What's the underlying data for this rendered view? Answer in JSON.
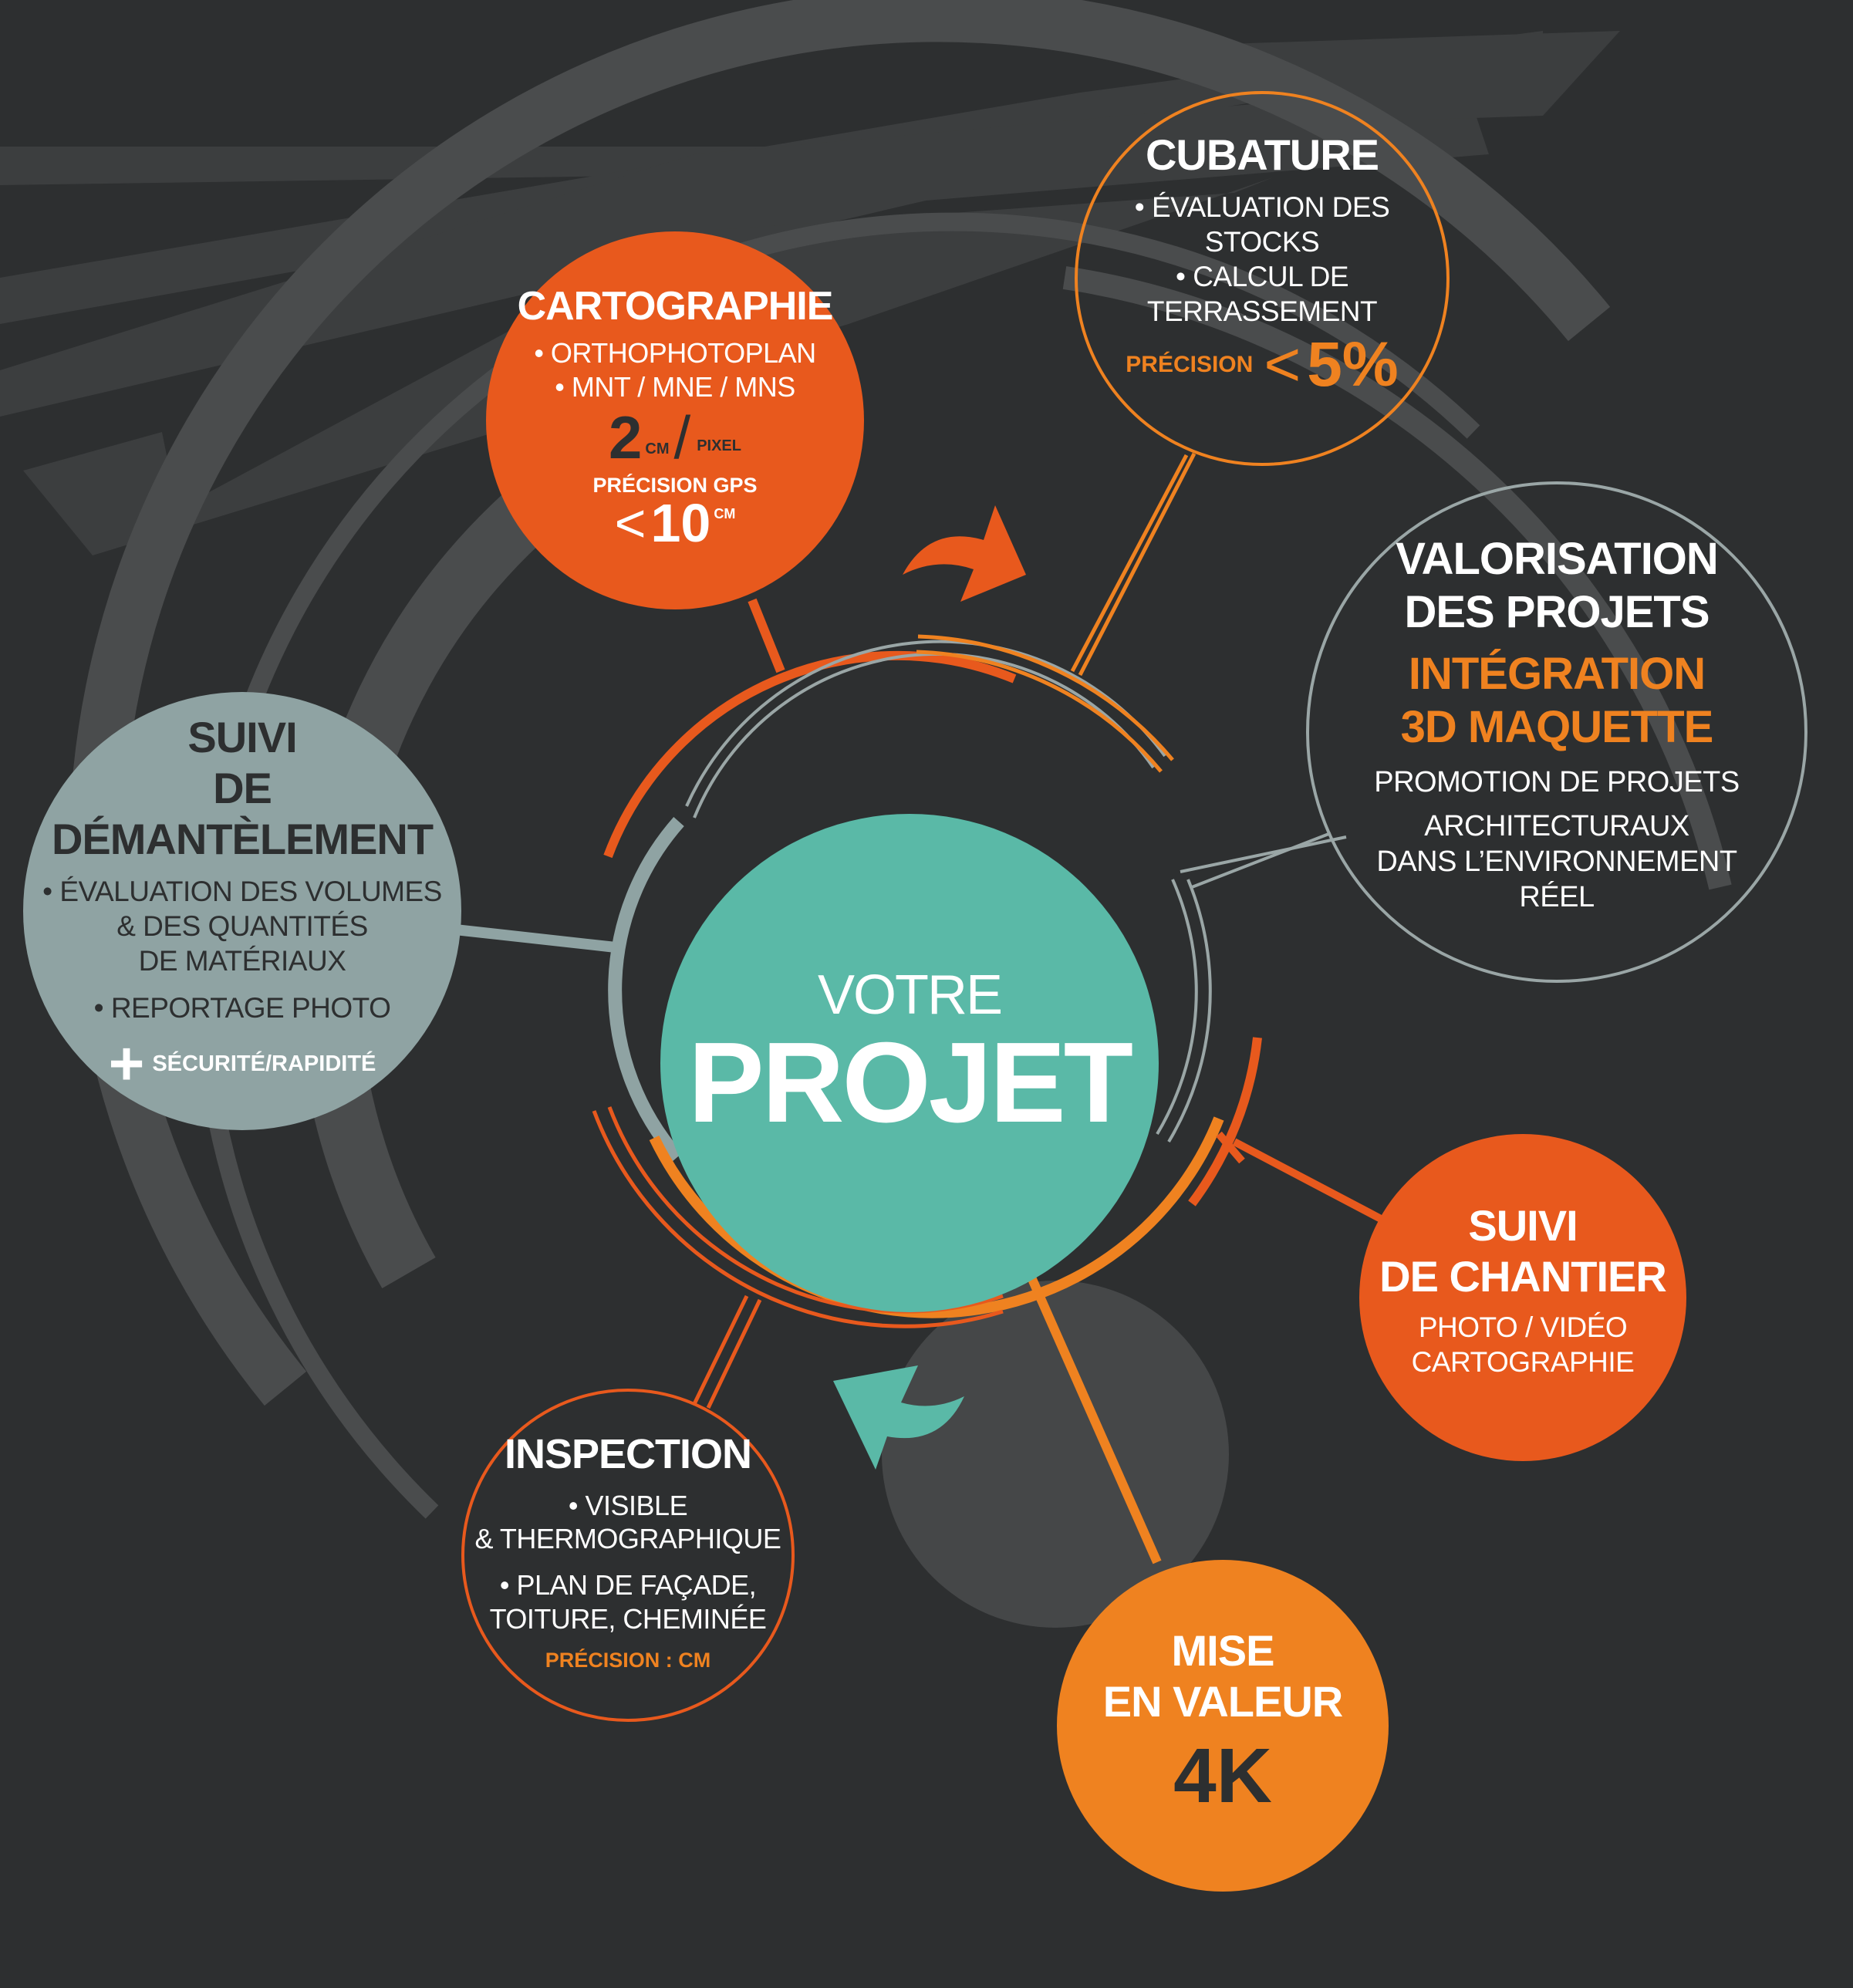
{
  "colors": {
    "background": "#2d2f30",
    "orange_dark": "#e8591d",
    "orange_light": "#ef8220",
    "teal": "#5ab9a7",
    "grey_blue": "#8fa3a3",
    "outline_light": "#9aa6a6",
    "white": "#ffffff",
    "dark_text": "#2d2f30"
  },
  "center": {
    "line1": "VOTRE",
    "line2": "PROJET"
  },
  "nodes": {
    "cartographie": {
      "title": "CARTOGRAPHIE",
      "bullet1": "• ORTHOPHOTOPLAN",
      "bullet2": "• MNT / MNE / MNS",
      "res_value": "2",
      "res_unit": "CM",
      "res_sep": "/",
      "res_per": "PIXEL",
      "gps_label": "PRÉCISION GPS",
      "gps_lt": "<",
      "gps_value": "10",
      "gps_unit": "CM"
    },
    "cubature": {
      "title": "CUBATURE",
      "bullet1": "• ÉVALUATION DES STOCKS",
      "bullet2": "• CALCUL DE TERRASSEMENT",
      "prec_label": "PRÉCISION",
      "prec_lt": "<",
      "prec_value": "5%"
    },
    "valorisation": {
      "title1": "VALORISATION",
      "title2": "DES PROJETS",
      "hl1": "INTÉGRATION",
      "hl2": "3D MAQUETTE",
      "line1": "PROMOTION DE PROJETS",
      "line2": "ARCHITECTURAUX",
      "line3": "DANS L’ENVIRONNEMENT",
      "line4": "RÉEL"
    },
    "demantelement": {
      "title1": "SUIVI",
      "title2": "DE DÉMANTÈLEMENT",
      "line1": "• ÉVALUATION DES VOLUMES",
      "line2": "& DES QUANTITÉS",
      "line3": "DE MATÉRIAUX",
      "line4": "• REPORTAGE PHOTO",
      "plus": "+",
      "extra": "SÉCURITÉ/RAPIDITÉ"
    },
    "chantier": {
      "title1": "SUIVI",
      "title2": "DE CHANTIER",
      "line1": "PHOTO / VIDÉO",
      "line2": "CARTOGRAPHIE"
    },
    "inspection": {
      "title": "INSPECTION",
      "line1": "• VISIBLE",
      "line2": "& THERMOGRAPHIQUE",
      "line3": "• PLAN DE FAÇADE,",
      "line4": "TOITURE, CHEMINÉE",
      "prec": "PRÉCISION : CM"
    },
    "mise_en_valeur": {
      "title1": "MISE",
      "title2": "EN VALEUR",
      "big": "4K"
    }
  },
  "icons": {
    "top_arrow": "curved-arrow-right-icon",
    "bottom_arrow": "curved-arrow-left-icon"
  }
}
